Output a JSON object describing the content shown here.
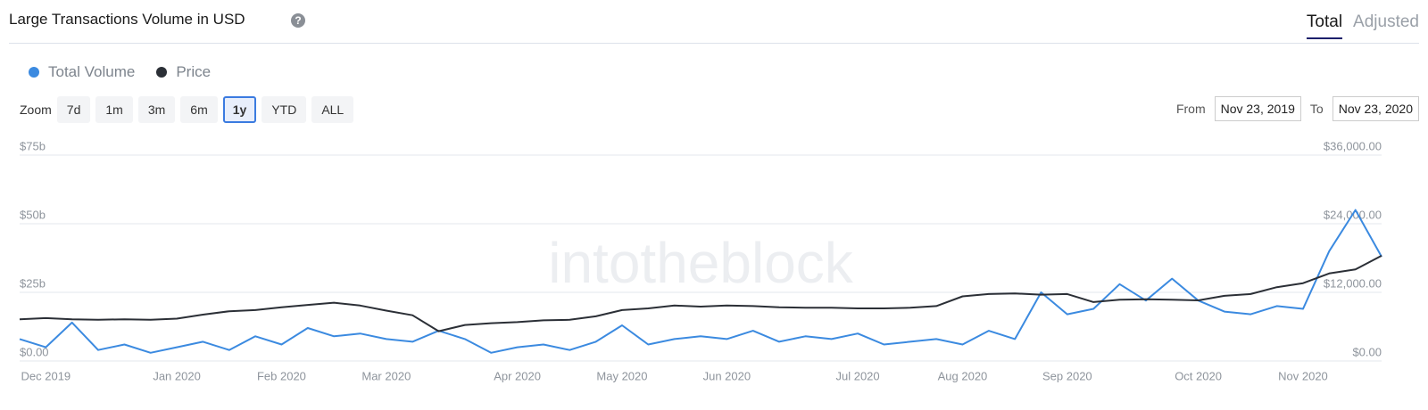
{
  "header": {
    "title": "Large Transactions Volume in USD",
    "help_icon": "?",
    "tabs": [
      "Total",
      "Adjusted"
    ],
    "active_tab": 0
  },
  "zoom": {
    "label": "Zoom",
    "options": [
      "7d",
      "1m",
      "3m",
      "6m",
      "1y",
      "YTD",
      "ALL"
    ],
    "active": 4
  },
  "range": {
    "from_label": "From",
    "from": "Nov 23, 2019",
    "to_label": "To",
    "to": "Nov 23, 2020"
  },
  "chart_data": {
    "type": "line",
    "watermark": "intotheblock",
    "categories": [
      null,
      "Dec 2019",
      null,
      null,
      null,
      null,
      "Jan 2020",
      null,
      null,
      null,
      "Feb 2020",
      null,
      null,
      null,
      "Mar 2020",
      null,
      null,
      null,
      null,
      "Apr 2020",
      null,
      null,
      null,
      "May 2020",
      null,
      null,
      null,
      "Jun 2020",
      null,
      null,
      null,
      null,
      "Jul 2020",
      null,
      null,
      null,
      "Aug 2020",
      null,
      null,
      null,
      "Sep 2020",
      null,
      null,
      null,
      null,
      "Oct 2020",
      null,
      null,
      null,
      "Nov 2020",
      null,
      null,
      null
    ],
    "series": [
      {
        "name": "Total Volume",
        "color": "#3b8ae0",
        "axis": "y",
        "values": [
          8,
          5,
          14,
          4,
          6,
          3,
          5,
          7,
          4,
          9,
          6,
          12,
          9,
          10,
          8,
          7,
          11,
          8,
          3,
          5,
          6,
          4,
          7,
          13,
          6,
          8,
          9,
          8,
          11,
          7,
          9,
          8,
          10,
          6,
          7,
          8,
          6,
          11,
          8,
          25,
          17,
          19,
          28,
          22,
          30,
          22,
          18,
          17,
          20,
          19,
          40,
          55,
          38
        ]
      },
      {
        "name": "Price",
        "color": "#2b2f36",
        "axis": "y2",
        "values": [
          7300,
          7500,
          7300,
          7200,
          7300,
          7200,
          7400,
          8100,
          8700,
          8900,
          9400,
          9800,
          10200,
          9700,
          8800,
          8000,
          5200,
          6300,
          6600,
          6800,
          7100,
          7200,
          7800,
          8900,
          9200,
          9700,
          9500,
          9700,
          9600,
          9400,
          9300,
          9300,
          9200,
          9200,
          9300,
          9600,
          11300,
          11700,
          11800,
          11600,
          11700,
          10300,
          10700,
          10800,
          10700,
          10600,
          11400,
          11700,
          12900,
          13600,
          15300,
          16000,
          18400
        ]
      }
    ],
    "ylim": [
      0,
      75
    ],
    "yticks": [
      {
        "value": 0,
        "label": "$0.00"
      },
      {
        "value": 25,
        "label": "$25b"
      },
      {
        "value": 50,
        "label": "$50b"
      },
      {
        "value": 75,
        "label": "$75b"
      }
    ],
    "y2lim": [
      0,
      36000
    ],
    "y2ticks": [
      {
        "value": 0,
        "label": "$0.00"
      },
      {
        "value": 12000,
        "label": "$12,000.00"
      },
      {
        "value": 24000,
        "label": "$24,000.00"
      },
      {
        "value": 36000,
        "label": "$36,000.00"
      }
    ],
    "grid": true
  }
}
